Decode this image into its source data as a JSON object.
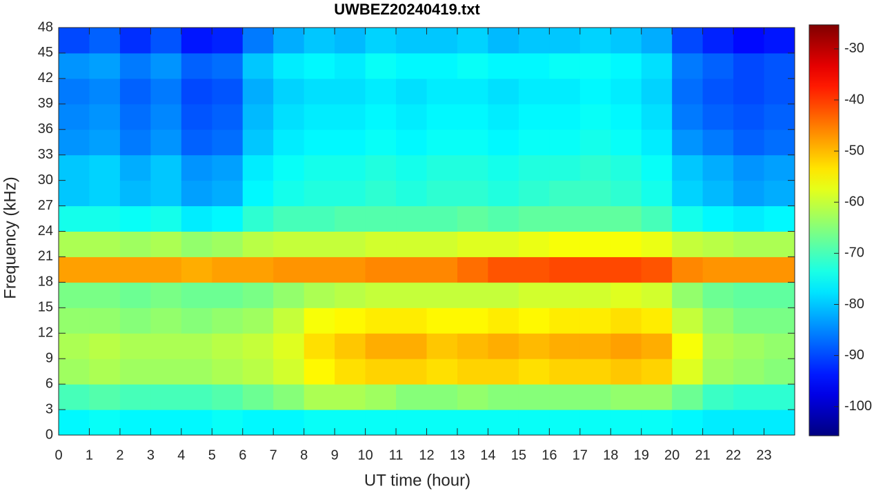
{
  "chart_data": {
    "type": "heatmap",
    "title": "UWBEZ20240419.txt",
    "x_label": "UT time (hour)",
    "y_label": "Frequency (kHz)",
    "colormap": "jet",
    "xbins": [
      0,
      1,
      2,
      3,
      4,
      5,
      6,
      7,
      8,
      9,
      10,
      11,
      12,
      13,
      14,
      15,
      16,
      17,
      18,
      19,
      20,
      21,
      22,
      23,
      24
    ],
    "ybins": [
      0,
      3,
      6,
      9,
      12,
      15,
      18,
      21,
      24,
      27,
      30,
      33,
      36,
      39,
      42,
      45,
      48
    ],
    "z": [
      [
        -76,
        -75,
        -76,
        -76,
        -76,
        -75,
        -76,
        -76,
        -75,
        -75,
        -75,
        -75,
        -75,
        -75,
        -75,
        -75,
        -75,
        -75,
        -75,
        -75,
        -76,
        -77,
        -77,
        -77
      ],
      [
        -70,
        -69,
        -70,
        -70,
        -70,
        -69,
        -67,
        -65,
        -62,
        -62,
        -63,
        -65,
        -65,
        -64,
        -65,
        -65,
        -65,
        -65,
        -64,
        -64,
        -67,
        -71,
        -72,
        -72
      ],
      [
        -63,
        -62,
        -63,
        -63,
        -63,
        -62,
        -61,
        -59,
        -55,
        -53,
        -52,
        -52,
        -53,
        -52,
        -52,
        -53,
        -52,
        -52,
        -51,
        -52,
        -58,
        -63,
        -64,
        -65
      ],
      [
        -62,
        -61,
        -62,
        -62,
        -62,
        -61,
        -60,
        -58,
        -53,
        -51,
        -49,
        -49,
        -51,
        -50,
        -49,
        -50,
        -49,
        -49,
        -48,
        -49,
        -56,
        -62,
        -63,
        -64
      ],
      [
        -64,
        -64,
        -65,
        -64,
        -65,
        -64,
        -63,
        -60,
        -56,
        -55,
        -54,
        -54,
        -55,
        -55,
        -54,
        -55,
        -54,
        -54,
        -53,
        -54,
        -60,
        -64,
        -66,
        -66
      ],
      [
        -66,
        -66,
        -67,
        -66,
        -67,
        -67,
        -66,
        -64,
        -62,
        -61,
        -60,
        -60,
        -60,
        -60,
        -60,
        -59,
        -59,
        -59,
        -58,
        -59,
        -64,
        -67,
        -68,
        -68
      ],
      [
        -48,
        -48,
        -48,
        -48,
        -49,
        -48,
        -48,
        -47,
        -47,
        -47,
        -46,
        -46,
        -46,
        -44,
        -42,
        -42,
        -41,
        -41,
        -41,
        -42,
        -46,
        -47,
        -47,
        -47
      ],
      [
        -62,
        -62,
        -63,
        -62,
        -64,
        -63,
        -61,
        -60,
        -60,
        -60,
        -59,
        -59,
        -59,
        -58,
        -58,
        -57,
        -56,
        -56,
        -56,
        -57,
        -60,
        -61,
        -62,
        -62
      ],
      [
        -74,
        -74,
        -75,
        -74,
        -77,
        -76,
        -72,
        -70,
        -70,
        -69,
        -69,
        -69,
        -69,
        -68,
        -69,
        -68,
        -68,
        -68,
        -68,
        -70,
        -74,
        -76,
        -77,
        -76
      ],
      [
        -80,
        -79,
        -81,
        -80,
        -83,
        -82,
        -76,
        -74,
        -73,
        -73,
        -72,
        -73,
        -72,
        -72,
        -73,
        -72,
        -71,
        -71,
        -72,
        -74,
        -79,
        -81,
        -83,
        -82
      ],
      [
        -80,
        -79,
        -82,
        -80,
        -84,
        -83,
        -77,
        -75,
        -74,
        -74,
        -73,
        -74,
        -73,
        -73,
        -74,
        -73,
        -73,
        -72,
        -73,
        -75,
        -80,
        -82,
        -84,
        -83
      ],
      [
        -84,
        -83,
        -86,
        -84,
        -88,
        -87,
        -80,
        -77,
        -76,
        -76,
        -75,
        -76,
        -75,
        -75,
        -76,
        -75,
        -75,
        -74,
        -75,
        -77,
        -84,
        -86,
        -88,
        -87
      ],
      [
        -85,
        -84,
        -87,
        -85,
        -89,
        -88,
        -81,
        -78,
        -77,
        -77,
        -76,
        -77,
        -76,
        -76,
        -77,
        -76,
        -76,
        -75,
        -76,
        -78,
        -86,
        -88,
        -89,
        -88
      ],
      [
        -86,
        -85,
        -88,
        -86,
        -90,
        -89,
        -82,
        -79,
        -78,
        -78,
        -77,
        -78,
        -77,
        -77,
        -78,
        -77,
        -77,
        -76,
        -77,
        -79,
        -87,
        -89,
        -90,
        -89
      ],
      [
        -84,
        -83,
        -86,
        -84,
        -88,
        -87,
        -80,
        -77,
        -76,
        -77,
        -75,
        -76,
        -76,
        -75,
        -76,
        -76,
        -75,
        -75,
        -76,
        -78,
        -86,
        -88,
        -90,
        -89
      ],
      [
        -90,
        -88,
        -92,
        -89,
        -94,
        -93,
        -86,
        -82,
        -80,
        -81,
        -79,
        -80,
        -80,
        -79,
        -81,
        -80,
        -80,
        -79,
        -80,
        -82,
        -90,
        -93,
        -95,
        -94
      ]
    ],
    "xlim": [
      0,
      24
    ],
    "ylim": [
      0,
      48
    ],
    "clim": [
      -105.7,
      -25.3
    ],
    "xticks": [
      0,
      1,
      2,
      3,
      4,
      5,
      6,
      7,
      8,
      9,
      10,
      11,
      12,
      13,
      14,
      15,
      16,
      17,
      18,
      19,
      20,
      21,
      22,
      23
    ],
    "yticks": [
      0,
      3,
      6,
      9,
      12,
      15,
      18,
      21,
      24,
      27,
      30,
      33,
      36,
      39,
      42,
      45,
      48
    ],
    "cticks": [
      -100,
      -90,
      -80,
      -70,
      -60,
      -50,
      -40,
      -30
    ]
  }
}
